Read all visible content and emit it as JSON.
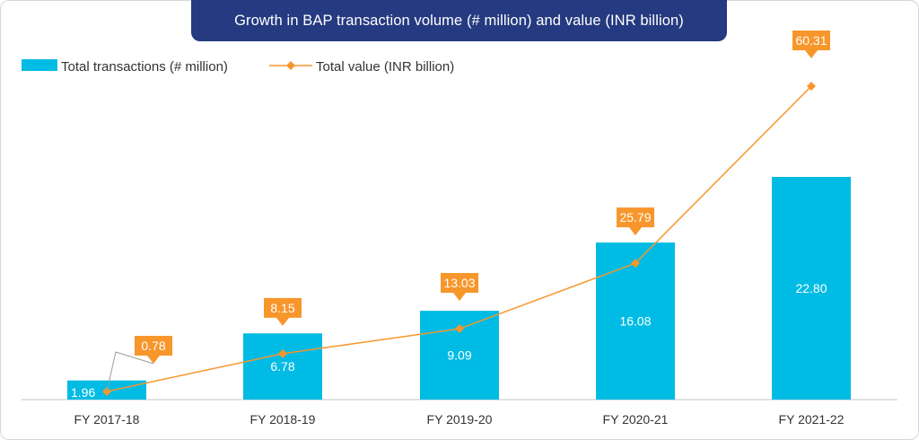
{
  "chart_data": {
    "type": "bar",
    "title": "Growth in BAP transaction volume (# million) and value (INR billion)",
    "categories": [
      "FY 2017-18",
      "FY 2018-19",
      "FY 2019-20",
      "FY 2020-21",
      "FY 2021-22"
    ],
    "series": [
      {
        "name": "Total transactions (# million)",
        "type": "bar",
        "color": "#00bce4",
        "values": [
          1.96,
          6.78,
          9.09,
          16.08,
          22.8
        ],
        "labels": [
          "1.96",
          "6.78",
          "9.09",
          "16.08",
          "22.80"
        ]
      },
      {
        "name": "Total value (INR billion)",
        "type": "line",
        "color": "#f7962b",
        "values": [
          0.78,
          8.15,
          13.03,
          25.79,
          60.31
        ],
        "labels": [
          "0.78",
          "8.15",
          "13.03",
          "25.79",
          "60.31"
        ]
      }
    ],
    "legend_position": "top-left",
    "grid": false
  }
}
